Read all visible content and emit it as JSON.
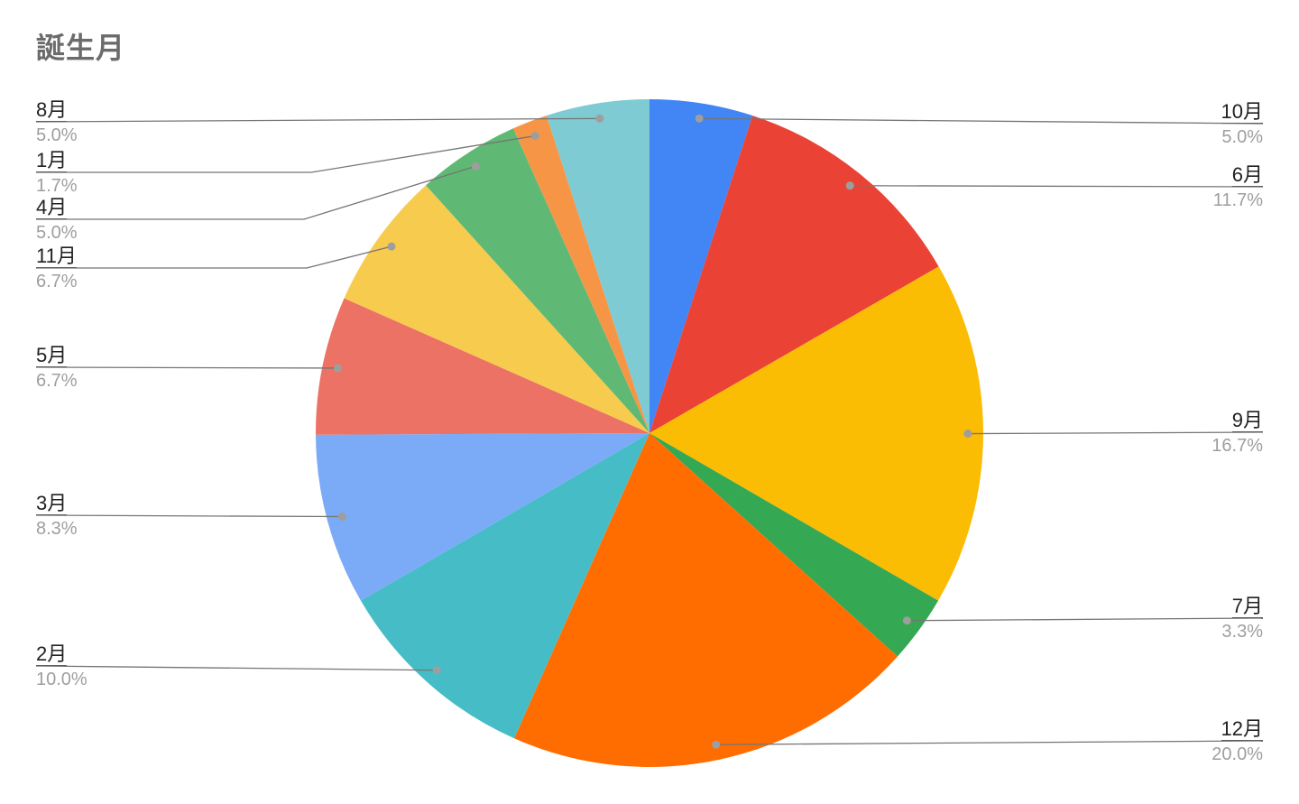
{
  "chart_data": {
    "type": "pie",
    "title": "誕生月",
    "start_angle": "top",
    "direction": "clockwise",
    "legend": "none",
    "label_style": "outside-callouts-with-leader-lines",
    "background": "#ffffff",
    "slices": [
      {
        "label": "10月",
        "percent": "5.0%",
        "value": 5.0,
        "color": "#4285F4"
      },
      {
        "label": "6月",
        "percent": "11.7%",
        "value": 11.7,
        "color": "#EA4335"
      },
      {
        "label": "9月",
        "percent": "16.7%",
        "value": 16.7,
        "color": "#FBBC04"
      },
      {
        "label": "7月",
        "percent": "3.3%",
        "value": 3.3,
        "color": "#34A853"
      },
      {
        "label": "12月",
        "percent": "20.0%",
        "value": 20.0,
        "color": "#FF6D01"
      },
      {
        "label": "2月",
        "percent": "10.0%",
        "value": 10.0,
        "color": "#46BDC6"
      },
      {
        "label": "3月",
        "percent": "8.3%",
        "value": 8.3,
        "color": "#7BAAF7"
      },
      {
        "label": "5月",
        "percent": "6.7%",
        "value": 6.7,
        "color": "#EC7266"
      },
      {
        "label": "11月",
        "percent": "6.7%",
        "value": 6.7,
        "color": "#F7CB4D"
      },
      {
        "label": "4月",
        "percent": "5.0%",
        "value": 5.0,
        "color": "#5FB974"
      },
      {
        "label": "1月",
        "percent": "1.7%",
        "value": 1.7,
        "color": "#F79546"
      },
      {
        "label": "8月",
        "percent": "5.0%",
        "value": 5.0,
        "color": "#7ECBD3"
      }
    ],
    "colors_meaning": {
      "leader_line": "#757575",
      "dot": "#9E9E9E",
      "month_text": "#212121",
      "percent_text": "#9E9E9E",
      "title_text": "#6B6B6B"
    }
  }
}
